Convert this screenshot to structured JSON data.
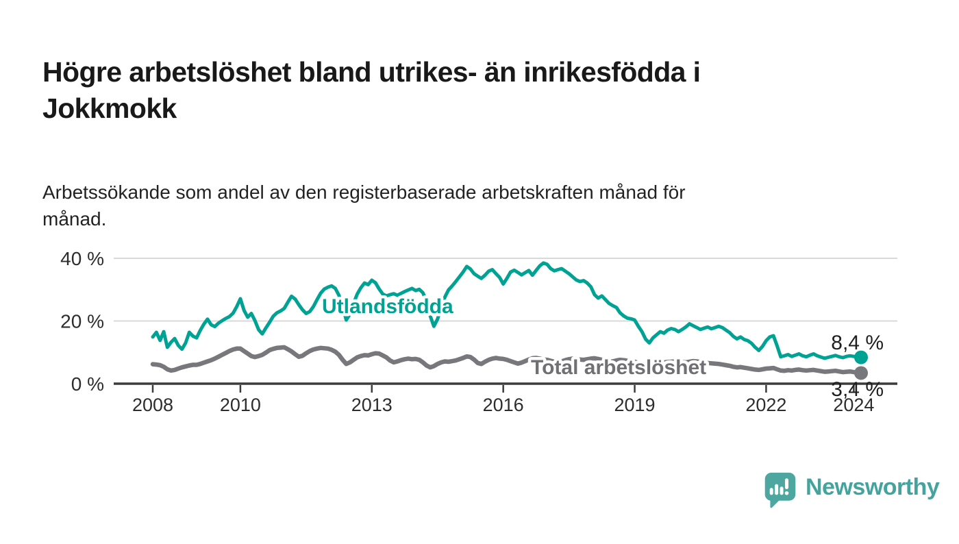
{
  "header": {
    "title_lines": [
      "Högre arbetslöshet bland utrikes- än inrikesfödda i",
      "Jokkmokk"
    ],
    "subtitle_lines": [
      "Arbetssökande som andel av den registerbaserade arbetskraften månad för",
      "månad."
    ]
  },
  "footer": {
    "brand": "Newsworthy",
    "logo_icon": "newsworthy-speech-bubble-chart-icon",
    "brand_color": "#4da6a0"
  },
  "colors": {
    "foreign_born_line": "#00a294",
    "total_line": "#77777c",
    "total_label": "#6f6f74",
    "grid": "#d9d9d9",
    "axis": "#3b3b3b",
    "text": "#2d2d2d"
  },
  "chart_data": {
    "type": "line",
    "frequency": "monthly",
    "x_start": "2008-01",
    "x_end": "2024-03",
    "grid": "horizontal",
    "legend_position": "inline-labels",
    "ylim": [
      0,
      43
    ],
    "yticks": [
      {
        "value": 0,
        "label": "0 %"
      },
      {
        "value": 20,
        "label": "20 %"
      },
      {
        "value": 40,
        "label": "40 %"
      }
    ],
    "xticks": [
      "2008",
      "2010",
      "2013",
      "2016",
      "2019",
      "2022",
      "2024"
    ],
    "series": [
      {
        "name": "Total arbetslöshet",
        "color": "#77777c",
        "label_color": "#6f6f74",
        "end_label": "3,4 %",
        "end_value": 3.4,
        "values": [
          6.2,
          6.1,
          5.9,
          5.4,
          4.6,
          4.2,
          4.4,
          4.8,
          5.2,
          5.5,
          5.8,
          6.0,
          6.0,
          6.3,
          6.7,
          7.1,
          7.5,
          8.0,
          8.6,
          9.2,
          9.8,
          10.4,
          10.9,
          11.2,
          11.2,
          10.4,
          9.6,
          8.8,
          8.5,
          8.8,
          9.2,
          9.9,
          10.7,
          11.1,
          11.4,
          11.5,
          11.6,
          11.0,
          10.3,
          9.4,
          8.6,
          8.9,
          9.7,
          10.4,
          10.9,
          11.2,
          11.4,
          11.3,
          11.2,
          10.8,
          10.2,
          9.2,
          7.6,
          6.3,
          6.8,
          7.6,
          8.4,
          8.8,
          9.1,
          9.0,
          9.4,
          9.7,
          9.6,
          9.0,
          8.4,
          7.4,
          6.8,
          7.1,
          7.5,
          7.8,
          8.0,
          7.8,
          7.9,
          7.6,
          6.8,
          5.8,
          5.2,
          5.6,
          6.3,
          6.8,
          7.1,
          7.0,
          7.2,
          7.4,
          7.8,
          8.2,
          8.7,
          8.5,
          7.7,
          6.6,
          6.3,
          7.0,
          7.6,
          8.0,
          8.2,
          8.0,
          7.9,
          7.6,
          7.2,
          6.8,
          6.4,
          6.7,
          7.2,
          7.7,
          8.1,
          8.2,
          8.0,
          7.7,
          7.6,
          7.3,
          7.0,
          6.8,
          7.1,
          7.5,
          7.8,
          8.0,
          7.9,
          7.7,
          7.6,
          7.8,
          8.0,
          8.1,
          7.9,
          7.6,
          7.2,
          6.9,
          7.1,
          7.4,
          7.6,
          7.5,
          7.3,
          7.2,
          7.0,
          6.6,
          6.1,
          5.7,
          5.5,
          5.9,
          6.3,
          6.6,
          6.8,
          6.9,
          7.0,
          7.1,
          7.0,
          6.9,
          6.8,
          7.0,
          7.2,
          7.1,
          6.9,
          6.7,
          6.6,
          6.5,
          6.4,
          6.3,
          6.1,
          5.9,
          5.7,
          5.4,
          5.2,
          5.3,
          5.1,
          4.9,
          4.7,
          4.5,
          4.4,
          4.6,
          4.8,
          4.9,
          5.0,
          4.6,
          4.2,
          4.1,
          4.3,
          4.2,
          4.4,
          4.5,
          4.3,
          4.2,
          4.3,
          4.4,
          4.2,
          4.0,
          3.8,
          3.9,
          4.0,
          4.1,
          3.9,
          3.7,
          3.8,
          3.9,
          3.7,
          3.5,
          3.4
        ]
      },
      {
        "name": "Utlandsfödda",
        "color": "#00a294",
        "label_color": "#00a294",
        "end_label": "8,4 %",
        "end_value": 8.4,
        "values": [
          14.9,
          16.4,
          13.8,
          16.6,
          11.6,
          13.2,
          14.4,
          12.2,
          11.0,
          13.0,
          16.4,
          15.2,
          14.6,
          17.0,
          19.0,
          20.6,
          18.8,
          18.2,
          19.3,
          20.1,
          20.8,
          21.4,
          22.5,
          24.6,
          27.1,
          23.4,
          21.2,
          22.4,
          20.1,
          17.2,
          15.9,
          17.8,
          19.6,
          21.5,
          22.6,
          23.2,
          24.0,
          26.0,
          27.9,
          27.0,
          25.2,
          23.6,
          22.4,
          23.0,
          24.6,
          26.8,
          28.9,
          30.2,
          30.8,
          31.2,
          30.4,
          28.2,
          24.6,
          20.3,
          22.2,
          25.6,
          28.6,
          30.6,
          32.1,
          31.6,
          33.0,
          32.2,
          30.2,
          28.6,
          28.0,
          28.4,
          28.7,
          28.2,
          28.8,
          29.4,
          29.9,
          30.4,
          29.7,
          30.1,
          29.0,
          26.2,
          21.6,
          18.3,
          20.6,
          24.2,
          27.6,
          29.9,
          31.2,
          32.6,
          34.1,
          35.6,
          37.4,
          36.6,
          35.1,
          34.3,
          33.6,
          34.6,
          35.9,
          36.4,
          35.1,
          33.9,
          31.8,
          33.6,
          35.6,
          36.2,
          35.5,
          34.7,
          35.4,
          36.1,
          34.6,
          36.1,
          37.6,
          38.5,
          38.1,
          36.7,
          36.0,
          36.4,
          36.7,
          35.9,
          35.1,
          34.1,
          33.1,
          32.6,
          32.9,
          32.1,
          30.9,
          28.4,
          27.3,
          28.0,
          26.8,
          25.6,
          24.9,
          24.3,
          22.6,
          21.6,
          20.9,
          20.7,
          20.3,
          18.3,
          16.6,
          14.2,
          13.0,
          14.6,
          15.6,
          16.6,
          16.1,
          17.1,
          17.6,
          17.3,
          16.6,
          17.3,
          18.1,
          19.1,
          18.5,
          17.9,
          17.3,
          17.7,
          18.1,
          17.5,
          17.9,
          18.3,
          17.9,
          17.1,
          16.3,
          15.1,
          14.3,
          14.9,
          14.1,
          13.7,
          12.9,
          11.6,
          10.6,
          11.9,
          13.7,
          14.9,
          15.3,
          12.1,
          8.6,
          8.9,
          9.3,
          8.7,
          9.1,
          9.5,
          8.9,
          8.6,
          9.1,
          9.5,
          8.9,
          8.5,
          8.1,
          8.4,
          8.7,
          9.0,
          8.6,
          8.3,
          8.7,
          8.9,
          8.7,
          8.5,
          8.4
        ]
      }
    ]
  }
}
